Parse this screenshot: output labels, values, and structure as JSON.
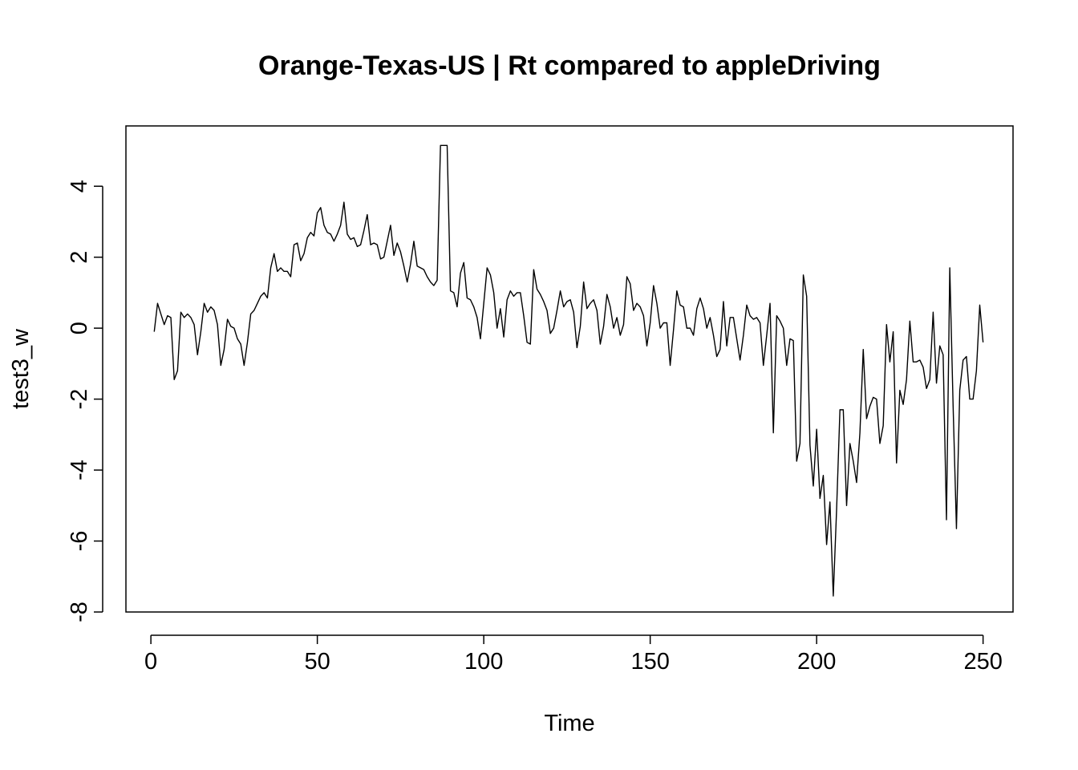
{
  "chart_data": {
    "type": "line",
    "title": "Orange-Texas-US | Rt compared to appleDriving",
    "xlabel": "Time",
    "ylabel": "test3_w",
    "xlim": [
      -7.5,
      259
    ],
    "ylim": [
      -8.0,
      5.7
    ],
    "x_ticks": [
      0,
      50,
      100,
      150,
      200,
      250
    ],
    "y_ticks": [
      -8,
      -6,
      -4,
      -2,
      0,
      2,
      4
    ],
    "grid": false,
    "series": [
      {
        "x_start": 1,
        "x_step": 1,
        "values": [
          -0.1,
          0.7,
          0.4,
          0.1,
          0.35,
          0.3,
          -1.45,
          -1.2,
          0.45,
          0.3,
          0.4,
          0.3,
          0.1,
          -0.75,
          -0.1,
          0.7,
          0.45,
          0.6,
          0.5,
          0.1,
          -1.05,
          -0.6,
          0.25,
          0.05,
          0.0,
          -0.3,
          -0.45,
          -1.05,
          -0.4,
          0.4,
          0.5,
          0.7,
          0.9,
          1.0,
          0.85,
          1.7,
          2.1,
          1.6,
          1.7,
          1.6,
          1.6,
          1.45,
          2.35,
          2.4,
          1.9,
          2.1,
          2.55,
          2.7,
          2.6,
          3.25,
          3.4,
          2.9,
          2.7,
          2.65,
          2.45,
          2.65,
          2.9,
          3.55,
          2.65,
          2.5,
          2.55,
          2.3,
          2.35,
          2.75,
          3.2,
          2.35,
          2.4,
          2.35,
          1.95,
          2.0,
          2.45,
          2.9,
          2.05,
          2.4,
          2.15,
          1.75,
          1.3,
          1.8,
          2.45,
          1.75,
          1.7,
          1.65,
          1.45,
          1.3,
          1.2,
          1.35,
          5.15,
          5.15,
          5.15,
          1.05,
          1.0,
          0.6,
          1.55,
          1.85,
          0.85,
          0.8,
          0.6,
          0.3,
          -0.3,
          0.7,
          1.7,
          1.5,
          1.0,
          0.0,
          0.55,
          -0.25,
          0.8,
          1.05,
          0.9,
          1.0,
          1.0,
          0.35,
          -0.4,
          -0.45,
          1.65,
          1.1,
          0.95,
          0.75,
          0.5,
          -0.15,
          0.0,
          0.5,
          1.05,
          0.6,
          0.75,
          0.8,
          0.45,
          -0.55,
          0.05,
          1.3,
          0.55,
          0.7,
          0.8,
          0.5,
          -0.45,
          0.05,
          0.95,
          0.6,
          0.0,
          0.3,
          -0.2,
          0.1,
          1.45,
          1.25,
          0.5,
          0.7,
          0.6,
          0.35,
          -0.5,
          0.15,
          1.2,
          0.7,
          0.0,
          0.15,
          0.15,
          -1.05,
          -0.05,
          1.05,
          0.65,
          0.6,
          0.0,
          0.0,
          -0.2,
          0.55,
          0.85,
          0.55,
          0.0,
          0.3,
          -0.2,
          -0.8,
          -0.6,
          0.75,
          -0.5,
          0.3,
          0.3,
          -0.3,
          -0.9,
          -0.2,
          0.65,
          0.35,
          0.25,
          0.3,
          0.15,
          -1.05,
          -0.2,
          0.7,
          -2.95,
          0.35,
          0.2,
          0.0,
          -1.05,
          -0.3,
          -0.35,
          -3.75,
          -3.25,
          1.5,
          0.9,
          -3.3,
          -4.45,
          -2.85,
          -4.8,
          -4.15,
          -6.1,
          -4.9,
          -7.55,
          -5.1,
          -2.3,
          -2.3,
          -5.0,
          -3.25,
          -3.75,
          -4.35,
          -2.95,
          -0.6,
          -2.55,
          -2.2,
          -1.95,
          -2.0,
          -3.25,
          -2.75,
          0.1,
          -0.95,
          -0.1,
          -3.8,
          -1.75,
          -2.15,
          -1.45,
          0.2,
          -0.95,
          -0.95,
          -0.9,
          -1.1,
          -1.7,
          -1.45,
          0.45,
          -1.55,
          -0.5,
          -0.75,
          -5.4,
          1.7,
          -2.2,
          -5.65,
          -1.75,
          -0.9,
          -0.8,
          -2.0,
          -2.0,
          -1.2,
          0.65,
          -0.4
        ]
      }
    ]
  }
}
